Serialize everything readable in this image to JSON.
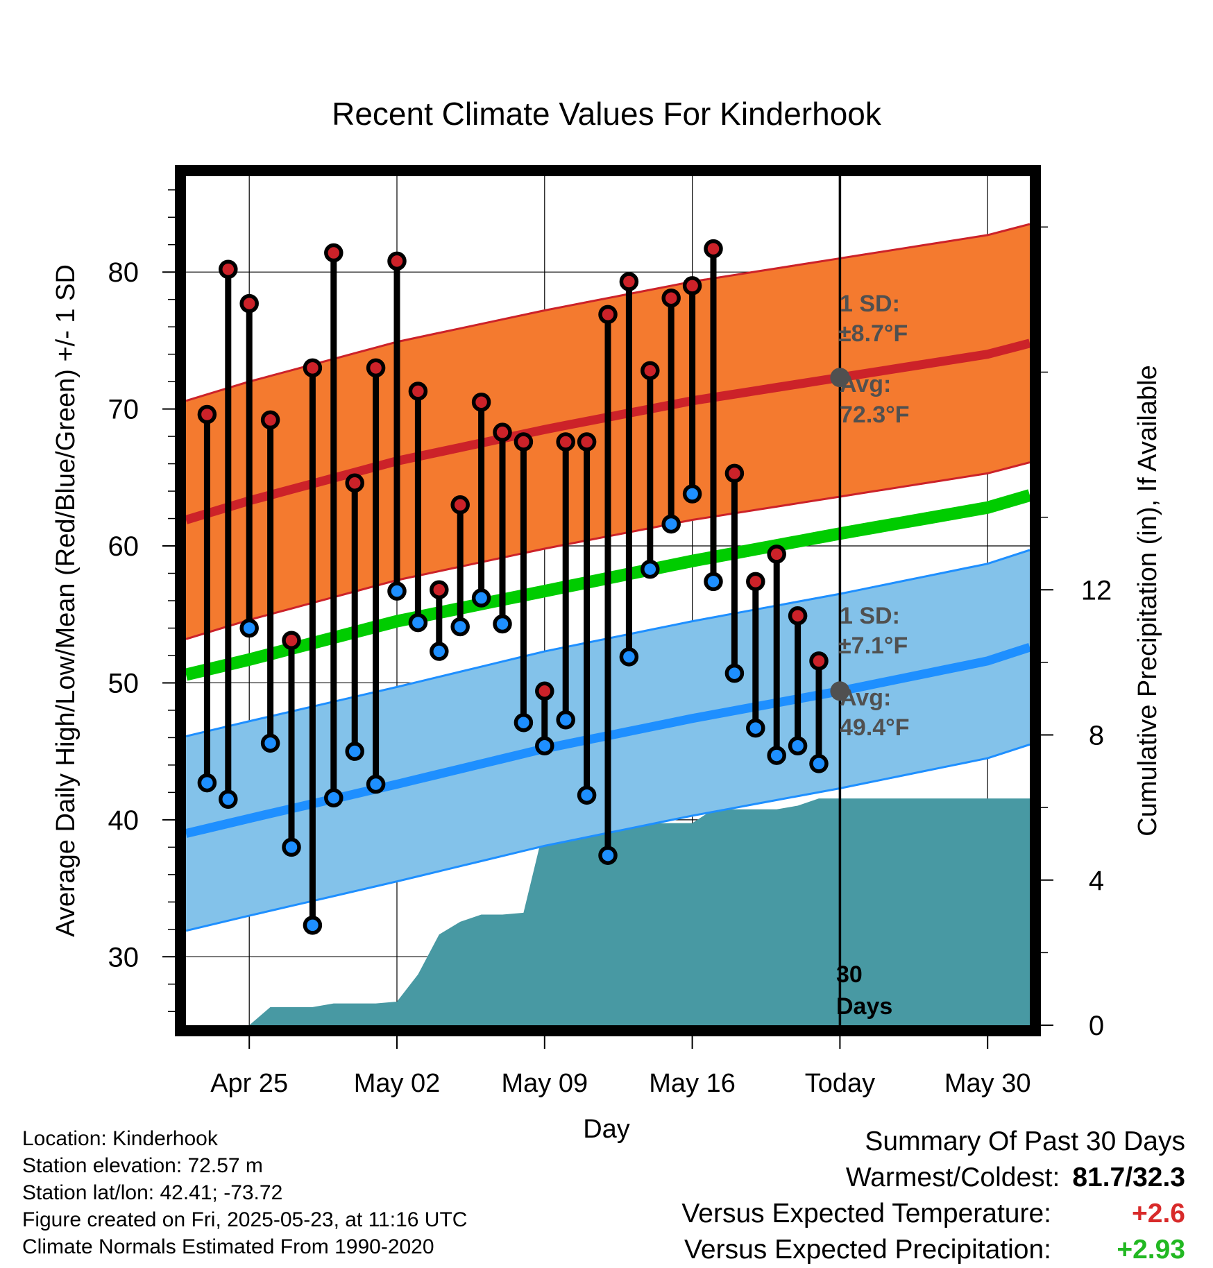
{
  "chart_data": {
    "type": "line",
    "title": "Recent Climate Values For Kinderhook",
    "xlabel": "Day",
    "ylabel": "Average Daily High/Low/Mean (Red/Blue/Green) +/- 1 SD",
    "ylabel_right": "Cumulative Precipitation (in), If Available",
    "ylim": [
      25,
      87
    ],
    "ylim_right": [
      0,
      23.4
    ],
    "xlim": [
      "2025-04-22",
      "2025-06-01"
    ],
    "x_ticks": [
      {
        "date": "2025-04-25",
        "label": "Apr 25"
      },
      {
        "date": "2025-05-02",
        "label": "May 02"
      },
      {
        "date": "2025-05-09",
        "label": "May 09"
      },
      {
        "date": "2025-05-16",
        "label": "May 16"
      },
      {
        "date": "2025-05-23",
        "label": "Today"
      },
      {
        "date": "2025-05-30",
        "label": "May 30"
      }
    ],
    "y_ticks": [
      30,
      40,
      50,
      60,
      70,
      80
    ],
    "y_ticks_right": [
      0,
      4,
      8,
      12
    ],
    "grid": true,
    "today": "2025-05-23",
    "today_label_num": "30",
    "today_label_unit": "Days",
    "days": [
      {
        "date": "2025-04-23",
        "high": 69.6,
        "low": 42.7
      },
      {
        "date": "2025-04-24",
        "high": 80.2,
        "low": 41.5
      },
      {
        "date": "2025-04-25",
        "high": 77.7,
        "low": 54.0
      },
      {
        "date": "2025-04-26",
        "high": 69.2,
        "low": 45.6
      },
      {
        "date": "2025-04-27",
        "high": 53.1,
        "low": 38.0
      },
      {
        "date": "2025-04-28",
        "high": 73.0,
        "low": 32.3
      },
      {
        "date": "2025-04-29",
        "high": 81.4,
        "low": 41.6
      },
      {
        "date": "2025-04-30",
        "high": 64.6,
        "low": 45.0
      },
      {
        "date": "2025-05-01",
        "high": 73.0,
        "low": 42.6
      },
      {
        "date": "2025-05-02",
        "high": 80.8,
        "low": 56.7
      },
      {
        "date": "2025-05-03",
        "high": 71.3,
        "low": 54.4
      },
      {
        "date": "2025-05-04",
        "high": 56.8,
        "low": 52.3
      },
      {
        "date": "2025-05-05",
        "high": 63.0,
        "low": 54.1
      },
      {
        "date": "2025-05-06",
        "high": 70.5,
        "low": 56.2
      },
      {
        "date": "2025-05-07",
        "high": 68.3,
        "low": 54.3
      },
      {
        "date": "2025-05-08",
        "high": 67.6,
        "low": 47.1
      },
      {
        "date": "2025-05-09",
        "high": 49.4,
        "low": 45.4
      },
      {
        "date": "2025-05-10",
        "high": 67.6,
        "low": 47.3
      },
      {
        "date": "2025-05-11",
        "high": 67.6,
        "low": 41.8
      },
      {
        "date": "2025-05-12",
        "high": 76.9,
        "low": 37.4
      },
      {
        "date": "2025-05-13",
        "high": 79.3,
        "low": 51.9
      },
      {
        "date": "2025-05-14",
        "high": 72.8,
        "low": 58.3
      },
      {
        "date": "2025-05-15",
        "high": 78.1,
        "low": 61.6
      },
      {
        "date": "2025-05-16",
        "high": 79.0,
        "low": 63.8
      },
      {
        "date": "2025-05-17",
        "high": 81.7,
        "low": 57.4
      },
      {
        "date": "2025-05-18",
        "high": 65.3,
        "low": 50.7
      },
      {
        "date": "2025-05-19",
        "high": 57.4,
        "low": 46.7
      },
      {
        "date": "2025-05-20",
        "high": 59.4,
        "low": 44.7
      },
      {
        "date": "2025-05-21",
        "high": 54.9,
        "low": 45.4
      },
      {
        "date": "2025-05-22",
        "high": 51.6,
        "low": 44.1
      }
    ],
    "normals": [
      {
        "date": "2025-04-22",
        "high": 61.9,
        "low": 39.0,
        "mean": 50.6
      },
      {
        "date": "2025-04-25",
        "high": 63.3,
        "low": 40.1,
        "mean": 51.7
      },
      {
        "date": "2025-05-02",
        "high": 66.2,
        "low": 42.6,
        "mean": 54.5
      },
      {
        "date": "2025-05-09",
        "high": 68.5,
        "low": 45.2,
        "mean": 56.7
      },
      {
        "date": "2025-05-16",
        "high": 70.6,
        "low": 47.4,
        "mean": 58.9
      },
      {
        "date": "2025-05-23",
        "high": 72.3,
        "low": 49.4,
        "mean": 60.9
      },
      {
        "date": "2025-05-30",
        "high": 74.0,
        "low": 51.6,
        "mean": 62.8
      },
      {
        "date": "2025-06-01",
        "high": 74.8,
        "low": 52.6,
        "mean": 63.7
      }
    ],
    "sd_high": 8.7,
    "sd_low": 7.1,
    "annotation_high": {
      "sd_label": "1 SD:",
      "sd_value": "±8.7°F",
      "avg_label": "Avg:",
      "avg_value": "72.3°F",
      "avg": 72.3
    },
    "annotation_low": {
      "sd_label": "1 SD:",
      "sd_value": "±7.1°F",
      "avg_label": "Avg:",
      "avg_value": "49.4°F",
      "avg": 49.4
    },
    "precip_cumulative": [
      {
        "date": "2025-04-25",
        "value": 0.0
      },
      {
        "date": "2025-04-26",
        "value": 0.5
      },
      {
        "date": "2025-04-27",
        "value": 0.5
      },
      {
        "date": "2025-04-28",
        "value": 0.5
      },
      {
        "date": "2025-04-29",
        "value": 0.6
      },
      {
        "date": "2025-04-30",
        "value": 0.6
      },
      {
        "date": "2025-05-01",
        "value": 0.6
      },
      {
        "date": "2025-05-02",
        "value": 0.65
      },
      {
        "date": "2025-05-03",
        "value": 1.4
      },
      {
        "date": "2025-05-04",
        "value": 2.5
      },
      {
        "date": "2025-05-05",
        "value": 2.85
      },
      {
        "date": "2025-05-06",
        "value": 3.05
      },
      {
        "date": "2025-05-07",
        "value": 3.05
      },
      {
        "date": "2025-05-08",
        "value": 3.1
      },
      {
        "date": "2025-05-09",
        "value": 5.5
      },
      {
        "date": "2025-05-10",
        "value": 5.55
      },
      {
        "date": "2025-05-11",
        "value": 5.55
      },
      {
        "date": "2025-05-12",
        "value": 5.55
      },
      {
        "date": "2025-05-13",
        "value": 5.55
      },
      {
        "date": "2025-05-14",
        "value": 5.56
      },
      {
        "date": "2025-05-15",
        "value": 5.57
      },
      {
        "date": "2025-05-16",
        "value": 5.57
      },
      {
        "date": "2025-05-17",
        "value": 5.95
      },
      {
        "date": "2025-05-18",
        "value": 5.95
      },
      {
        "date": "2025-05-19",
        "value": 5.95
      },
      {
        "date": "2025-05-20",
        "value": 5.95
      },
      {
        "date": "2025-05-21",
        "value": 6.05
      },
      {
        "date": "2025-05-22",
        "value": 6.25
      },
      {
        "date": "2025-05-23",
        "value": 6.25
      },
      {
        "date": "2025-06-01",
        "value": 6.25
      }
    ],
    "colors": {
      "high": "#cc2229",
      "high_band": "#f47a2f",
      "low": "#1e8fff",
      "low_band": "#83c2ea",
      "mean": "#00cc00",
      "precip": "#4899a3",
      "annotation": "#505050"
    }
  },
  "info": {
    "location": "Location: Kinderhook",
    "elevation": "Station elevation: 72.57 m",
    "latlon": "Station lat/lon: 42.41; -73.72",
    "created": "Figure created on Fri, 2025-05-23, at 11:16 UTC",
    "normals": "Climate Normals Estimated From 1990-2020"
  },
  "summary": {
    "title": "Summary Of Past 30 Days",
    "warmest_label": "Warmest/Coldest:",
    "warmest_value": "81.7/32.3",
    "temp_label": "Versus Expected Temperature:",
    "temp_value": "+2.6",
    "temp_color": "#d82a2a",
    "precip_label": "Versus Expected Precipitation:",
    "precip_value": "+2.93",
    "precip_color": "#22b822"
  }
}
